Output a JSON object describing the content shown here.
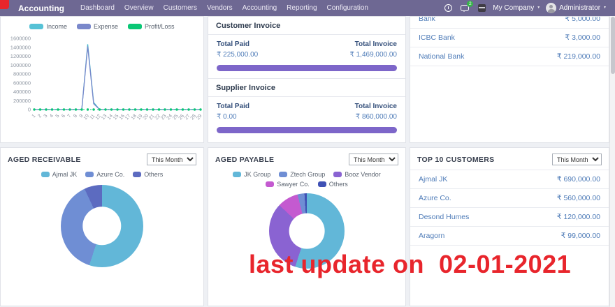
{
  "colors": {
    "navbar_bg": "#6e6893",
    "accent_purple": "#7d66c9",
    "link_blue": "#4f7cb8",
    "overlay_red": "#e8252c",
    "badge_green": "#37b34a"
  },
  "navbar": {
    "brand": "Accounting",
    "items": [
      {
        "label": "Dashboard"
      },
      {
        "label": "Overview"
      },
      {
        "label": "Customers"
      },
      {
        "label": "Vendors"
      },
      {
        "label": "Accounting"
      },
      {
        "label": "Reporting"
      },
      {
        "label": "Configuration"
      }
    ],
    "messages_badge": "2",
    "company": "My Company",
    "user": "Administrator"
  },
  "income_chart": {
    "legend": [
      {
        "label": "Income",
        "color": "#56c2d6"
      },
      {
        "label": "Expense",
        "color": "#7a88cb"
      },
      {
        "label": "Profit/Loss",
        "color": "#0ac775"
      }
    ],
    "chart_data": {
      "type": "line",
      "x": [
        1,
        2,
        3,
        4,
        5,
        6,
        7,
        8,
        9,
        10,
        11,
        12,
        13,
        14,
        15,
        16,
        17,
        18,
        19,
        20,
        21,
        22,
        23,
        24,
        25,
        26,
        27,
        28,
        29
      ],
      "ylim": [
        0,
        1600000
      ],
      "yticks": [
        1600000,
        1400000,
        1200000,
        1000000,
        800000,
        600000,
        400000,
        200000,
        0
      ],
      "series": [
        {
          "name": "Income",
          "color": "#45b8cc",
          "values": [
            0,
            0,
            0,
            0,
            0,
            0,
            0,
            0,
            0,
            1469000,
            160000,
            0,
            0,
            0,
            0,
            0,
            0,
            0,
            0,
            0,
            0,
            0,
            0,
            0,
            0,
            0,
            0,
            0,
            0
          ]
        },
        {
          "name": "Expense",
          "color": "#7a88cb",
          "values": [
            0,
            0,
            0,
            0,
            0,
            0,
            0,
            0,
            0,
            1420000,
            130000,
            0,
            0,
            0,
            0,
            0,
            0,
            0,
            0,
            0,
            0,
            0,
            0,
            0,
            0,
            0,
            0,
            0,
            0
          ]
        },
        {
          "name": "Profit/Loss",
          "color": "#0ac775",
          "style": "dots",
          "values": [
            0,
            0,
            0,
            0,
            0,
            0,
            0,
            0,
            0,
            0,
            0,
            0,
            0,
            0,
            0,
            0,
            0,
            0,
            0,
            0,
            0,
            0,
            0,
            0,
            0,
            0,
            0,
            0,
            0
          ]
        }
      ]
    }
  },
  "invoices": {
    "customer": {
      "title": "Customer Invoice",
      "paid_label": "Total Paid",
      "paid_value": "₹ 225,000.00",
      "invoice_label": "Total Invoice",
      "invoice_value": "₹ 1,469,000.00"
    },
    "supplier": {
      "title": "Supplier Invoice",
      "paid_label": "Total Paid",
      "paid_value": "₹ 0.00",
      "invoice_label": "Total Invoice",
      "invoice_value": "₹ 860,000.00"
    }
  },
  "banks": {
    "rows": [
      {
        "name": "Bank",
        "amount": "₹ 5,000.00"
      },
      {
        "name": "ICBC Bank",
        "amount": "₹ 3,000.00"
      },
      {
        "name": "National Bank",
        "amount": "₹ 219,000.00"
      }
    ]
  },
  "aged_receivable": {
    "title": "AGED RECEIVABLE",
    "filter": "This Month",
    "legend": [
      {
        "label": "Ajmal JK",
        "color": "#62b7d8"
      },
      {
        "label": "Azure Co.",
        "color": "#6f8ed4"
      },
      {
        "label": "Others",
        "color": "#5c6bc0"
      }
    ],
    "chart_data": {
      "type": "pie",
      "slices": [
        {
          "label": "Ajmal JK",
          "value": 55,
          "color": "#62b7d8"
        },
        {
          "label": "Azure Co.",
          "value": 38,
          "color": "#6f8ed4"
        },
        {
          "label": "Others",
          "value": 7,
          "color": "#5c6bc0"
        }
      ]
    }
  },
  "aged_payable": {
    "title": "AGED PAYABLE",
    "filter": "This Month",
    "legend": [
      {
        "label": "JK Group",
        "color": "#62b7d8"
      },
      {
        "label": "Ztech Group",
        "color": "#6f8ed4"
      },
      {
        "label": "Booz Vendor",
        "color": "#8a63d2"
      },
      {
        "label": "Sawyer Co.",
        "color": "#c45ad0"
      },
      {
        "label": "Others",
        "color": "#3f51b5"
      }
    ],
    "chart_data": {
      "type": "pie",
      "slices": [
        {
          "label": "JK Group",
          "value": 55,
          "color": "#62b7d8"
        },
        {
          "label": "Booz Vendor",
          "value": 32,
          "color": "#8a63d2"
        },
        {
          "label": "Sawyer Co.",
          "value": 9,
          "color": "#c45ad0"
        },
        {
          "label": "Ztech Group",
          "value": 3,
          "color": "#6f8ed4"
        },
        {
          "label": "Others",
          "value": 1,
          "color": "#3f51b5"
        }
      ]
    }
  },
  "top_customers": {
    "title": "TOP 10 CUSTOMERS",
    "filter": "This Month",
    "rows": [
      {
        "name": "Ajmal JK",
        "amount": "₹ 690,000.00"
      },
      {
        "name": "Azure Co.",
        "amount": "₹ 560,000.00"
      },
      {
        "name": "Desond Humes",
        "amount": "₹ 120,000.00"
      },
      {
        "name": "Aragorn",
        "amount": "₹ 99,000.00"
      }
    ]
  },
  "overlay": {
    "text": "last update on  02-01-2021"
  }
}
